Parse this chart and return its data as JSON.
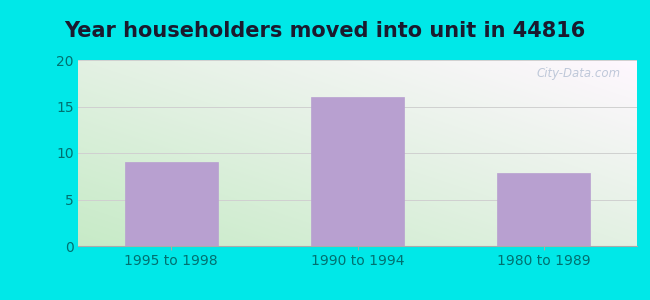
{
  "title": "Year householders moved into unit in 44816",
  "categories": [
    "1995 to 1998",
    "1990 to 1994",
    "1980 to 1989"
  ],
  "values": [
    9,
    16,
    7.8
  ],
  "bar_color": "#b8a0d0",
  "bar_edgecolor": "#b8a0d0",
  "ylim": [
    0,
    20
  ],
  "yticks": [
    0,
    5,
    10,
    15,
    20
  ],
  "background_outer": "#00e8e8",
  "grid_color": "#d0d0d0",
  "title_fontsize": 15,
  "tick_fontsize": 10,
  "watermark": "City-Data.com"
}
